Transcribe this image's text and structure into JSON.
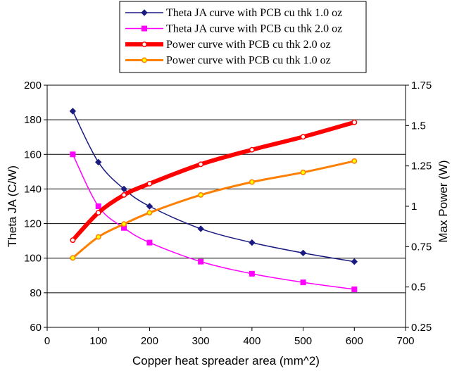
{
  "chart_data": {
    "type": "line",
    "title": "",
    "xlabel": "Copper heat spreader area (mm^2)",
    "ylabel_left": "Theta JA (C/W)",
    "ylabel_right": "Max Power (W)",
    "xlim": [
      0,
      700
    ],
    "ylim_left": [
      60,
      200
    ],
    "ylim_right": [
      0.25,
      1.75
    ],
    "x_ticks": [
      0,
      100,
      200,
      300,
      400,
      500,
      600,
      700
    ],
    "y_left_ticks": [
      60,
      80,
      100,
      120,
      140,
      160,
      180,
      200
    ],
    "y_right_ticks": [
      "0.25",
      "0.5",
      "0.75",
      "1",
      "1.25",
      "1.5",
      "1.75"
    ],
    "grid": "horizontal",
    "legend_position": "top",
    "series": [
      {
        "name": "Theta JA curve with PCB cu thk  1.0 oz",
        "axis": "left",
        "color": "#1a1a80",
        "marker": "diamond",
        "x": [
          50,
          100,
          150,
          200,
          300,
          400,
          500,
          600
        ],
        "values": [
          185,
          155.5,
          140,
          130,
          117,
          109,
          103,
          98
        ]
      },
      {
        "name": "Theta JA curve with PCB cu thk  2.0 oz",
        "axis": "left",
        "color": "#ff00ff",
        "marker": "square",
        "x": [
          50,
          100,
          150,
          200,
          300,
          400,
          500,
          600
        ],
        "values": [
          160,
          130,
          117.5,
          109,
          98,
          91,
          86,
          82
        ]
      },
      {
        "name": "Power curve with PCB cu thk 2.0 oz",
        "axis": "right",
        "color": "#ff0000",
        "marker": "circle-white",
        "x": [
          50,
          100,
          150,
          200,
          300,
          400,
          500,
          600
        ],
        "values": [
          0.79,
          0.96,
          1.07,
          1.14,
          1.26,
          1.35,
          1.43,
          1.52
        ]
      },
      {
        "name": "Power curve with PCB cu thk 1.0 oz",
        "axis": "right",
        "color": "#ff7f00",
        "marker": "circle-yellow",
        "x": [
          50,
          100,
          150,
          200,
          300,
          400,
          500,
          600
        ],
        "values": [
          0.68,
          0.81,
          0.89,
          0.96,
          1.07,
          1.15,
          1.21,
          1.28
        ]
      }
    ]
  }
}
